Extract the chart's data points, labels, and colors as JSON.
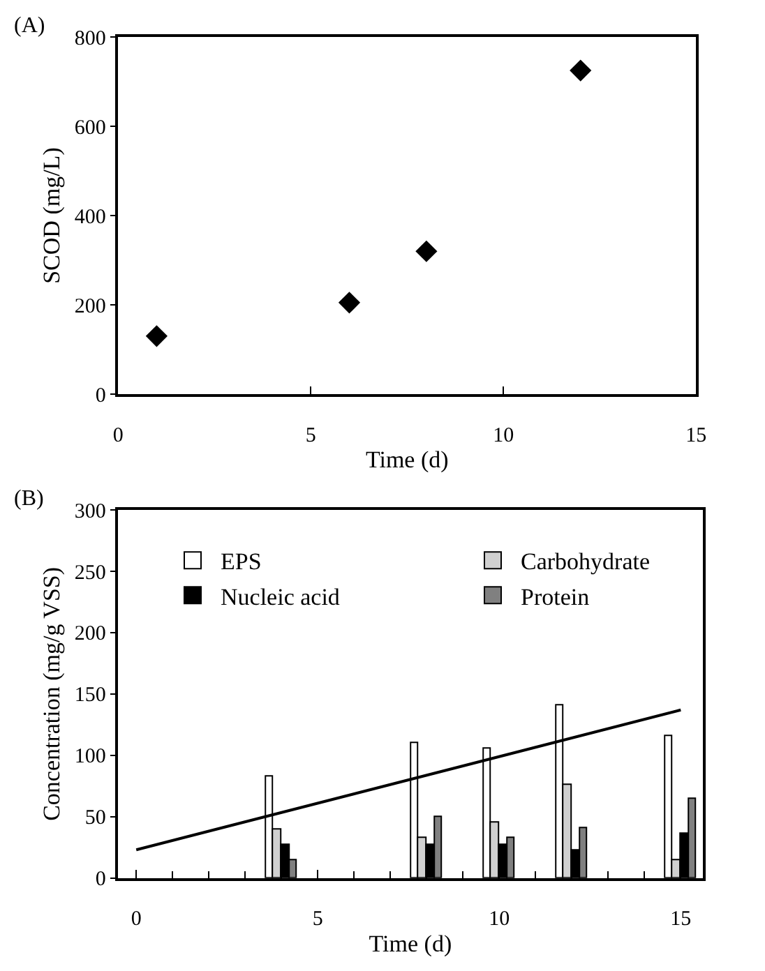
{
  "chart_data": [
    {
      "type": "scatter",
      "title": "(A)",
      "xlabel": "Time (d)",
      "ylabel": "SCOD (mg/L)",
      "marker": "diamond",
      "legend": false,
      "grid": false,
      "x": [
        1,
        6,
        8,
        12
      ],
      "series": [
        {
          "color": "#000000",
          "values": [
            130,
            205,
            320,
            725
          ]
        }
      ],
      "xlim": [
        0,
        15
      ],
      "xticks": [
        0,
        5,
        10,
        15
      ],
      "ylim": [
        0,
        800
      ],
      "yticks": [
        0,
        200,
        400,
        600,
        800
      ]
    },
    {
      "type": "bar",
      "title": "(B)",
      "xlabel": "Time (d)",
      "ylabel": "Concentration (mg/g VSS)",
      "legend": "top",
      "grid": false,
      "x": [
        4,
        8,
        10,
        12,
        15
      ],
      "series": [
        {
          "name": "EPS",
          "color": "#ffffff",
          "values": [
            83,
            110,
            106,
            141,
            116
          ]
        },
        {
          "name": "Carbohydrate",
          "color": "#d0d0d0",
          "values": [
            40,
            33,
            45,
            76,
            15
          ]
        },
        {
          "name": "Nucleic acid",
          "color": "#000000",
          "values": [
            27,
            27,
            27,
            23,
            36
          ]
        },
        {
          "name": "Protein",
          "color": "#808080",
          "values": [
            14,
            50,
            33,
            41,
            65
          ]
        },
        {
          "type": "line",
          "color": "#000000",
          "x": [
            0,
            15
          ],
          "values": [
            23,
            137
          ]
        }
      ],
      "xlim": [
        -0.5,
        15.6
      ],
      "xticks": [
        0,
        5,
        10,
        15
      ],
      "ylim": [
        0,
        300
      ],
      "yticks": [
        0,
        50,
        100,
        150,
        200,
        250,
        300
      ]
    }
  ]
}
